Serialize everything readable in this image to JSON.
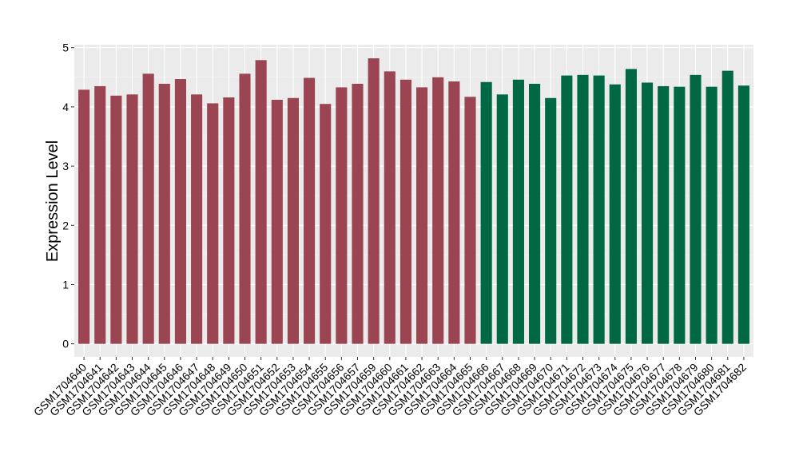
{
  "chart_data": {
    "type": "bar",
    "title": "",
    "xlabel": "",
    "ylabel": "Expression Level",
    "ylim": [
      -0.22,
      5.05
    ],
    "yticks": [
      0,
      1,
      2,
      3,
      4,
      5
    ],
    "grid": true,
    "panel_background": "#ebebeb",
    "categories": [
      "GSM1704640",
      "GSM1704641",
      "GSM1704642",
      "GSM1704643",
      "GSM1704644",
      "GSM1704645",
      "GSM1704646",
      "GSM1704647",
      "GSM1704648",
      "GSM1704649",
      "GSM1704650",
      "GSM1704651",
      "GSM1704652",
      "GSM1704653",
      "GSM1704654",
      "GSM1704655",
      "GSM1704656",
      "GSM1704657",
      "GSM1704659",
      "GSM1704660",
      "GSM1704661",
      "GSM1704662",
      "GSM1704663",
      "GSM1704664",
      "GSM1704665",
      "GSM1704666",
      "GSM1704667",
      "GSM1704668",
      "GSM1704669",
      "GSM1704670",
      "GSM1704671",
      "GSM1704672",
      "GSM1704673",
      "GSM1704674",
      "GSM1704675",
      "GSM1704676",
      "GSM1704677",
      "GSM1704678",
      "GSM1704679",
      "GSM1704680",
      "GSM1704681",
      "GSM1704682"
    ],
    "values": [
      4.29,
      4.35,
      4.19,
      4.21,
      4.56,
      4.39,
      4.47,
      4.21,
      4.06,
      4.16,
      4.56,
      4.79,
      4.12,
      4.15,
      4.49,
      4.05,
      4.33,
      4.39,
      4.82,
      4.6,
      4.46,
      4.33,
      4.5,
      4.43,
      4.17,
      4.42,
      4.21,
      4.46,
      4.39,
      4.15,
      4.53,
      4.54,
      4.53,
      4.38,
      4.64,
      4.41,
      4.35,
      4.34,
      4.54,
      4.34,
      4.61,
      4.36
    ],
    "group_sizes": [
      25,
      17
    ],
    "colors": [
      "#9b4452",
      "#016844"
    ]
  }
}
